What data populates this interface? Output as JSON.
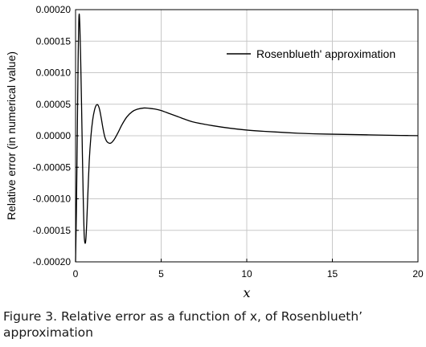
{
  "chart_data": {
    "type": "line",
    "xlabel": "x",
    "ylabel": "Relative error (in numerical value)",
    "xlim": [
      0,
      20
    ],
    "ylim": [
      -0.0002,
      0.0002
    ],
    "x_ticks": [
      "0",
      "5",
      "10",
      "15",
      "20"
    ],
    "y_ticks": [
      "0.00020",
      "0.00015",
      "0.00010",
      "0.00005",
      "0.00000",
      "-0.00005",
      "-0.00010",
      "-0.00015",
      "-0.00020"
    ],
    "grid": true,
    "legend_position": "top-right",
    "series": [
      {
        "name": "Rosenblueth' approximation",
        "color": "#000000",
        "x": [
          0,
          0.05,
          0.1,
          0.15,
          0.2,
          0.25,
          0.3,
          0.35,
          0.4,
          0.45,
          0.5,
          0.55,
          0.6,
          0.65,
          0.7,
          0.8,
          0.9,
          1.0,
          1.1,
          1.2,
          1.3,
          1.4,
          1.5,
          1.6,
          1.7,
          1.8,
          1.9,
          2.0,
          2.1,
          2.2,
          2.3,
          2.5,
          2.7,
          3.0,
          3.3,
          3.6,
          4.0,
          4.3,
          4.6,
          5.0,
          5.5,
          6.0,
          6.5,
          7.0,
          8.0,
          9.0,
          10.0,
          11.0,
          12.0,
          13.0,
          14.0,
          15.0,
          16.0,
          17.0,
          18.0,
          19.0,
          20.0
        ],
        "y": [
          -0.0002,
          -0.00012,
          0.0,
          0.00012,
          0.00019,
          0.000175,
          0.00012,
          5e-05,
          -3e-05,
          -0.0001,
          -0.000155,
          -0.00017,
          -0.000165,
          -0.00014,
          -0.000105,
          -4e-05,
          0.0,
          2.5e-05,
          4e-05,
          4.8e-05,
          4.9e-05,
          4.2e-05,
          2.8e-05,
          1.2e-05,
          -1e-06,
          -8e-06,
          -1.1e-05,
          -1.2e-05,
          -1.1e-05,
          -8e-06,
          -4e-06,
          6e-06,
          1.7e-05,
          3e-05,
          3.8e-05,
          4.2e-05,
          4.4e-05,
          4.35e-05,
          4.25e-05,
          4e-05,
          3.5e-05,
          3e-05,
          2.5e-05,
          2.1e-05,
          1.6e-05,
          1.2e-05,
          9e-06,
          7e-06,
          5.5e-06,
          4e-06,
          3e-06,
          2.5e-06,
          2e-06,
          1.5e-06,
          1e-06,
          5e-07,
          2e-07
        ]
      }
    ]
  },
  "caption": "Figure 3. Relative error as a function of x, of Rosenblueth’ approximation"
}
